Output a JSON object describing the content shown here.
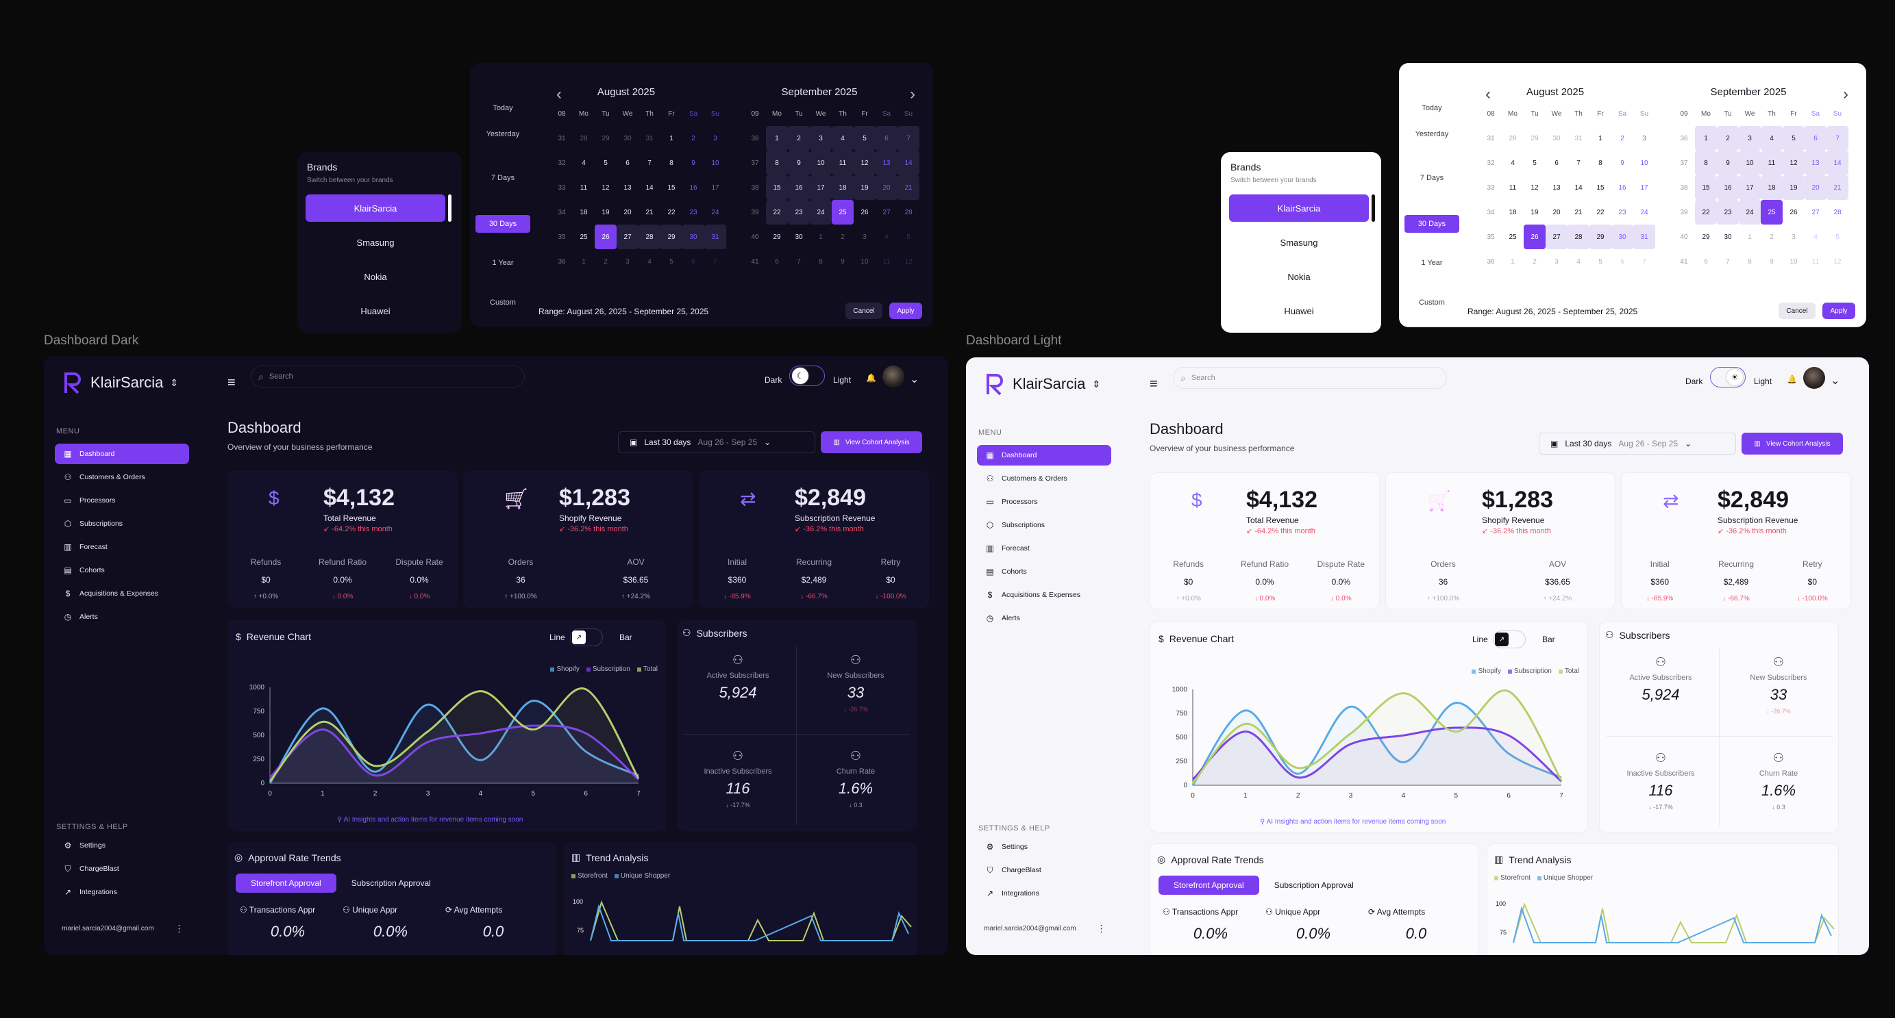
{
  "frames": {
    "dark_label": "Dashboard Dark",
    "light_label": "Dashboard Light"
  },
  "brands": {
    "title": "Brands",
    "subtitle": "Switch between your brands",
    "items": [
      "KlairSarcia",
      "Smasung",
      "Nokia",
      "Huawei"
    ]
  },
  "calendar": {
    "presets": [
      "Today",
      "Yesterday",
      "7 Days",
      "30 Days",
      "1 Year",
      "Custom"
    ],
    "selected_preset": "30 Days",
    "weekday_headers": [
      "Mo",
      "Tu",
      "We",
      "Th",
      "Fr",
      "Sa",
      "Su"
    ],
    "wk_header_aug": "08",
    "wk_header_sep": "09",
    "aug": {
      "title": "August 2025",
      "rows": [
        [
          "31",
          "28",
          "29",
          "30",
          "31",
          "1",
          "2",
          "3"
        ],
        [
          "32",
          "4",
          "5",
          "6",
          "7",
          "8",
          "9",
          "10"
        ],
        [
          "33",
          "11",
          "12",
          "13",
          "14",
          "15",
          "16",
          "17"
        ],
        [
          "34",
          "18",
          "19",
          "20",
          "21",
          "22",
          "23",
          "24"
        ],
        [
          "35",
          "25",
          "26",
          "27",
          "28",
          "29",
          "30",
          "31"
        ],
        [
          "36",
          "1",
          "2",
          "3",
          "4",
          "5",
          "6",
          "7"
        ]
      ]
    },
    "sep": {
      "title": "September 2025",
      "rows": [
        [
          "36",
          "1",
          "2",
          "3",
          "4",
          "5",
          "6",
          "7"
        ],
        [
          "37",
          "8",
          "9",
          "10",
          "11",
          "12",
          "13",
          "14"
        ],
        [
          "38",
          "15",
          "16",
          "17",
          "18",
          "19",
          "20",
          "21"
        ],
        [
          "39",
          "22",
          "23",
          "24",
          "25",
          "26",
          "27",
          "28"
        ],
        [
          "40",
          "29",
          "30",
          "1",
          "2",
          "3",
          "4",
          "5"
        ],
        [
          "41",
          "6",
          "7",
          "8",
          "9",
          "10",
          "11",
          "12"
        ]
      ]
    },
    "range_text": "Range: August 26, 2025 - September 25, 2025",
    "cancel": "Cancel",
    "apply": "Apply"
  },
  "dashboard": {
    "brand": "KlairSarcia",
    "search_placeholder": "Search",
    "dark_label": "Dark",
    "light_label": "Light",
    "menu_label": "MENU",
    "menu": [
      "Dashboard",
      "Customers & Orders",
      "Processors",
      "Subscriptions",
      "Forecast",
      "Cohorts",
      "Acquisitions & Expenses",
      "Alerts"
    ],
    "menu_icons": [
      "grid-icon",
      "users-icon",
      "card-icon",
      "box-icon",
      "bar-chart-icon",
      "cohort-icon",
      "dollar-icon",
      "clock-icon"
    ],
    "settings_label": "SETTINGS & HELP",
    "settings": [
      "Settings",
      "ChargeBlast",
      "Integrations"
    ],
    "user_email": "mariel.sarcia2004@gmail.com",
    "title": "Dashboard",
    "subtitle": "Overview of your business performance",
    "range_label": "Last 30 days",
    "range_dates": "Aug 26 - Sep 25",
    "cohort_button": "View Cohort Analysis",
    "kpis": [
      {
        "icon": "$",
        "value": "$4,132",
        "label": "Total Revenue",
        "change": "↙ -64.2% this month",
        "metrics": [
          [
            "Refunds",
            "$0",
            "↑ +0.0%"
          ],
          [
            "Refund Ratio",
            "0.0%",
            "↓ 0.0%"
          ],
          [
            "Dispute Rate",
            "0.0%",
            "↓ 0.0%"
          ]
        ]
      },
      {
        "icon": "🛒",
        "value": "$1,283",
        "label": "Shopify Revenue",
        "change": "↙ -36.2% this month",
        "metrics": [
          [
            "Orders",
            "36",
            "↑ +100.0%"
          ],
          [
            "AOV",
            "$36.65",
            "↑ +24.2%"
          ]
        ]
      },
      {
        "icon": "⇄",
        "value": "$2,849",
        "label": "Subscription Revenue",
        "change": "↙ -36.2% this month",
        "metrics": [
          [
            "Initial",
            "$360",
            "↓ -85.9%"
          ],
          [
            "Recurring",
            "$2,489",
            "↓ -66.7%"
          ],
          [
            "Retry",
            "$0",
            "↓ -100.0%"
          ]
        ]
      }
    ],
    "revenue_chart": {
      "title": "Revenue Chart",
      "line": "Line",
      "bar": "Bar",
      "ai_note": "AI Insights and action items for revenue items coming soon"
    },
    "subscribers": {
      "title": "Subscribers",
      "cells": [
        {
          "label": "Active Subscribers",
          "value": "5,924",
          "change": ""
        },
        {
          "label": "New Subscribers",
          "value": "33",
          "change": "↓ -26.7%"
        },
        {
          "label": "Inactive Subscribers",
          "value": "116",
          "change": "↓ -17.7%"
        },
        {
          "label": "Churn Rate",
          "value": "1.6%",
          "change": "↓ 0.3"
        }
      ]
    },
    "approval": {
      "title": "Approval Rate Trends",
      "tabs": [
        "Storefront Approval",
        "Subscription Approval"
      ],
      "cols": [
        [
          "Transactions Appr",
          "0.0%"
        ],
        [
          "Unique Appr",
          "0.0%"
        ],
        [
          "Avg Attempts",
          "0.0"
        ]
      ]
    },
    "trend": {
      "title": "Trend Analysis",
      "legend": [
        "Storefront",
        "Unique Shopper"
      ],
      "yticks": [
        "100",
        "75"
      ]
    }
  },
  "chart_data": {
    "type": "line",
    "x": [
      0,
      1,
      2,
      3,
      4,
      5,
      6,
      7
    ],
    "ylim": [
      0,
      1000
    ],
    "yticks": [
      0,
      250,
      500,
      750,
      1000
    ],
    "legend": "top-right",
    "series": [
      {
        "name": "Shopify",
        "color": "#5aa9e6",
        "values": [
          0,
          780,
          120,
          820,
          240,
          860,
          330,
          80
        ]
      },
      {
        "name": "Subscription",
        "color": "#7b3df0",
        "values": [
          60,
          560,
          80,
          430,
          520,
          600,
          520,
          40
        ]
      },
      {
        "name": "Total",
        "color": "#b5cf6b",
        "values": [
          20,
          640,
          180,
          540,
          960,
          560,
          980,
          50
        ]
      }
    ]
  },
  "colors": {
    "accent": "#7b3df0",
    "negative": "#ef4d6a",
    "dark_bg": "#0f0d1e",
    "light_bg": "#ffffff"
  }
}
